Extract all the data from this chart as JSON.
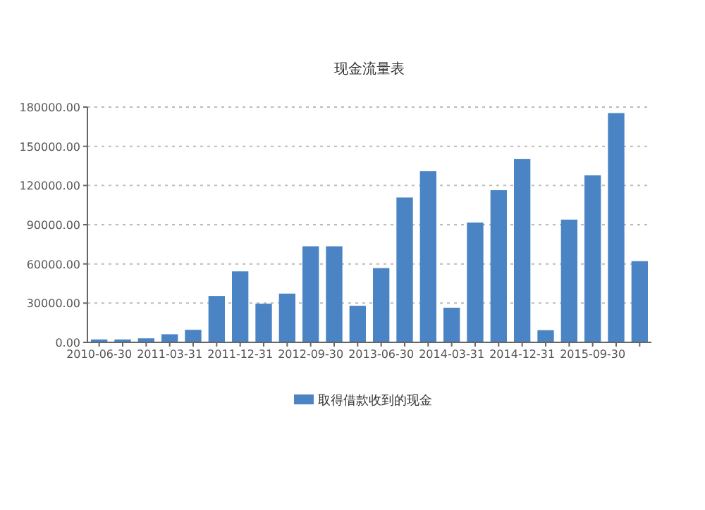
{
  "chart_data": {
    "type": "bar",
    "title": "现金流量表",
    "categories": [
      "2010-06-30",
      null,
      null,
      "2011-03-31",
      null,
      null,
      "2011-12-31",
      null,
      null,
      "2012-09-30",
      null,
      null,
      "2013-06-30",
      null,
      null,
      "2014-03-31",
      null,
      null,
      "2014-12-31",
      null,
      null,
      "2015-09-30",
      null,
      null
    ],
    "series": [
      {
        "name": "取得借款收到的现金",
        "color": "#4a84c4",
        "values": [
          2200,
          2200,
          3100,
          6200,
          9600,
          35500,
          54300,
          29600,
          37300,
          73500,
          73500,
          28000,
          56800,
          110800,
          130900,
          26500,
          91700,
          116400,
          140200,
          9300,
          93900,
          127800,
          175400,
          62100
        ]
      }
    ],
    "ylim": [
      0,
      180000
    ],
    "yticks": [
      {
        "value": 0,
        "label": "0.00"
      },
      {
        "value": 30000,
        "label": "30000.00"
      },
      {
        "value": 60000,
        "label": "60000.00"
      },
      {
        "value": 90000,
        "label": "90000.00"
      },
      {
        "value": 120000,
        "label": "120000.00"
      },
      {
        "value": 150000,
        "label": "150000.00"
      },
      {
        "value": 180000,
        "label": "180000.00"
      }
    ],
    "grid": "y",
    "legend": "bottom"
  }
}
